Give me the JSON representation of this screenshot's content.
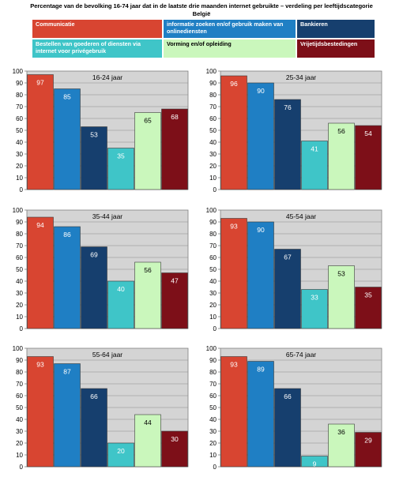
{
  "header": {
    "title": "Percentage van de bevolking 16-74 jaar dat in de laatste drie maanden internet gebruikte – verdeling per leeftijdscategorie",
    "subtitle": "België"
  },
  "colors": {
    "communicatie": "#d84531",
    "informatie": "#1f7fc4",
    "bankieren": "#163f6e",
    "bestellen": "#3fc5c8",
    "vorming": "#caf7bc",
    "vrije_tijd": "#7d0f18"
  },
  "chart_data": {
    "type": "bar",
    "categories": [
      "Communicatie",
      "informatie zoeken en/of gebruik maken van onlinediensten",
      "Bankieren",
      "Bestellen van goederen of diensten via internet voor privégebruik",
      "Vorming en/of opleiding",
      "Vrijetijdsbestedingen"
    ],
    "ylim": [
      0,
      100
    ],
    "yticks": [
      0,
      10,
      20,
      30,
      40,
      50,
      60,
      70,
      80,
      90,
      100
    ],
    "grid": true,
    "panels": [
      {
        "title": "16-24 jaar",
        "values": [
          97,
          85,
          53,
          35,
          65,
          68
        ]
      },
      {
        "title": "25-34 jaar",
        "values": [
          96,
          90,
          76,
          41,
          56,
          54
        ]
      },
      {
        "title": "35-44 jaar",
        "values": [
          94,
          86,
          69,
          40,
          56,
          47
        ]
      },
      {
        "title": "45-54 jaar",
        "values": [
          93,
          90,
          67,
          33,
          53,
          35
        ]
      },
      {
        "title": "55-64 jaar",
        "values": [
          93,
          87,
          66,
          20,
          44,
          30
        ]
      },
      {
        "title": "65-74 jaar",
        "values": [
          93,
          89,
          66,
          9,
          36,
          29
        ]
      }
    ]
  }
}
